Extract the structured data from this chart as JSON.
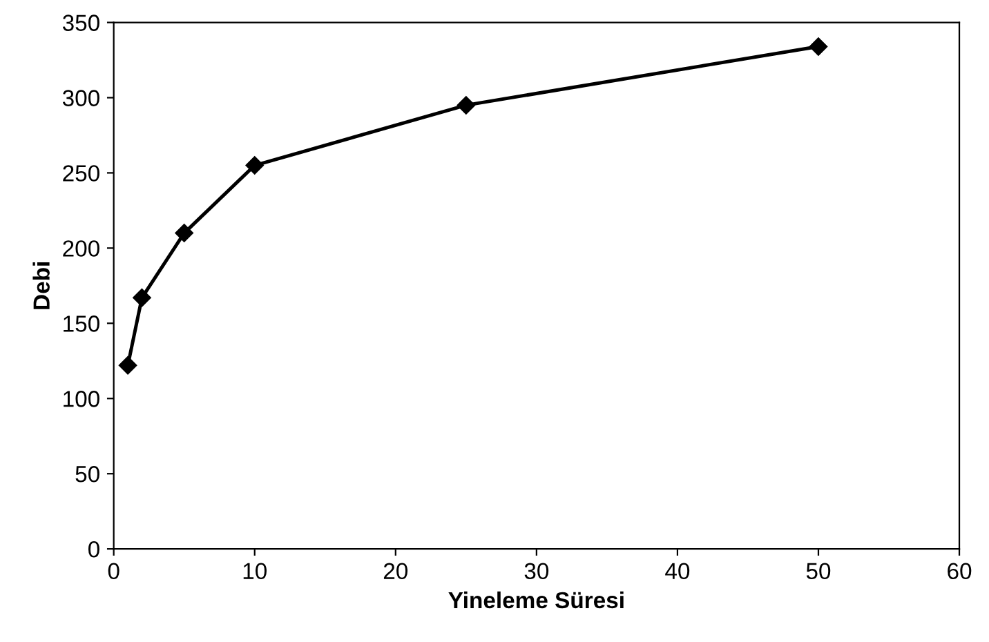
{
  "chart_data": {
    "type": "line",
    "xlabel": "Yineleme Süresi",
    "ylabel": "Debi",
    "x": [
      1,
      2,
      5,
      10,
      25,
      50
    ],
    "series": [
      {
        "color": "#000000",
        "values": [
          122,
          167,
          210,
          255,
          295,
          334
        ]
      }
    ],
    "xlim": [
      0,
      60
    ],
    "xticks": [
      0,
      10,
      20,
      30,
      40,
      50,
      60
    ],
    "ylim": [
      0,
      350
    ],
    "yticks": [
      0,
      50,
      100,
      150,
      200,
      250,
      300,
      350
    ],
    "marker": "diamond",
    "line_style": "solid",
    "grid": false,
    "legend": false
  }
}
